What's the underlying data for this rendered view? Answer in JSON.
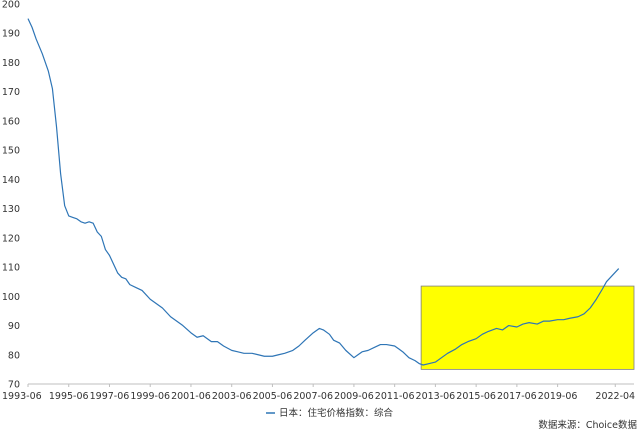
{
  "chart_data": {
    "type": "line",
    "ylim": [
      70,
      200
    ],
    "yticks": [
      70,
      80,
      90,
      100,
      110,
      120,
      130,
      140,
      150,
      160,
      170,
      180,
      190,
      200
    ],
    "xrange": [
      1993.0,
      2022.75
    ],
    "xtick_labels": [
      "1993-06",
      "1995-06",
      "1997-06",
      "1999-06",
      "2001-06",
      "2003-06",
      "2005-06",
      "2007-06",
      "2009-06",
      "2011-06",
      "2013-06",
      "2015-06",
      "2017-06",
      "2019-06",
      "2022-04"
    ],
    "xtick_positions": [
      1993.0,
      1995.0,
      1997.0,
      1999.0,
      2001.0,
      2003.0,
      2005.0,
      2007.0,
      2009.0,
      2011.0,
      2013.0,
      2015.0,
      2017.0,
      2019.0,
      2021.83
    ],
    "grid": false,
    "legend_position": "bottom",
    "series": [
      {
        "name": "日本：住宅价格指数：综合",
        "color": "#2e75b6",
        "x": [
          1993.0,
          1993.2,
          1993.4,
          1993.7,
          1994.0,
          1994.2,
          1994.4,
          1994.6,
          1994.8,
          1995.0,
          1995.2,
          1995.4,
          1995.6,
          1995.8,
          1996.0,
          1996.2,
          1996.4,
          1996.6,
          1996.8,
          1997.0,
          1997.2,
          1997.4,
          1997.6,
          1997.8,
          1998.0,
          1998.3,
          1998.6,
          1999.0,
          1999.3,
          1999.6,
          2000.0,
          2000.3,
          2000.6,
          2001.0,
          2001.3,
          2001.6,
          2002.0,
          2002.3,
          2002.6,
          2003.0,
          2003.3,
          2003.6,
          2004.0,
          2004.3,
          2004.6,
          2005.0,
          2005.3,
          2005.6,
          2006.0,
          2006.3,
          2006.6,
          2007.0,
          2007.3,
          2007.5,
          2007.8,
          2008.0,
          2008.3,
          2008.6,
          2009.0,
          2009.2,
          2009.4,
          2009.7,
          2010.0,
          2010.3,
          2010.6,
          2011.0,
          2011.2,
          2011.4,
          2011.7,
          2012.0,
          2012.2,
          2012.4,
          2012.7,
          2013.0,
          2013.3,
          2013.6,
          2014.0,
          2014.3,
          2014.6,
          2015.0,
          2015.3,
          2015.6,
          2016.0,
          2016.3,
          2016.6,
          2017.0,
          2017.3,
          2017.6,
          2018.0,
          2018.3,
          2018.6,
          2019.0,
          2019.3,
          2019.6,
          2020.0,
          2020.3,
          2020.6,
          2020.9,
          2021.2,
          2021.4,
          2021.6,
          2021.8,
          2022.0
        ],
        "values": [
          195,
          192,
          188,
          183,
          177,
          171,
          158,
          142,
          131,
          127.5,
          127,
          126.5,
          125.5,
          125,
          125.5,
          125,
          122,
          120.5,
          116,
          114,
          111,
          108,
          106.5,
          106,
          104,
          103,
          102,
          99,
          97.5,
          96,
          93,
          91.5,
          90,
          87.5,
          86,
          86.5,
          84.5,
          84.5,
          83,
          81.5,
          81,
          80.5,
          80.5,
          80,
          79.5,
          79.5,
          80,
          80.5,
          81.5,
          83,
          85,
          87.5,
          89,
          88.5,
          87,
          85,
          84,
          81.5,
          79,
          80,
          81,
          81.5,
          82.5,
          83.5,
          83.5,
          83,
          82,
          81,
          79,
          78,
          77,
          76.5,
          77,
          77.5,
          79,
          80.5,
          82,
          83.5,
          84.5,
          85.5,
          87,
          88,
          89,
          88.5,
          90,
          89.5,
          90.5,
          91,
          90.5,
          91.5,
          91.5,
          92,
          92,
          92.5,
          93,
          94,
          96,
          99,
          102.5,
          105,
          106.5,
          108,
          109.5
        ]
      }
    ],
    "highlight_box": {
      "x0": 2012.3,
      "x1": 2022.75,
      "y0": 75,
      "y1": 103.5,
      "fill": "#ffff00"
    },
    "legend": {
      "label": "日本：住宅价格指数：综合"
    },
    "source": "数据来源：Choice数据"
  }
}
